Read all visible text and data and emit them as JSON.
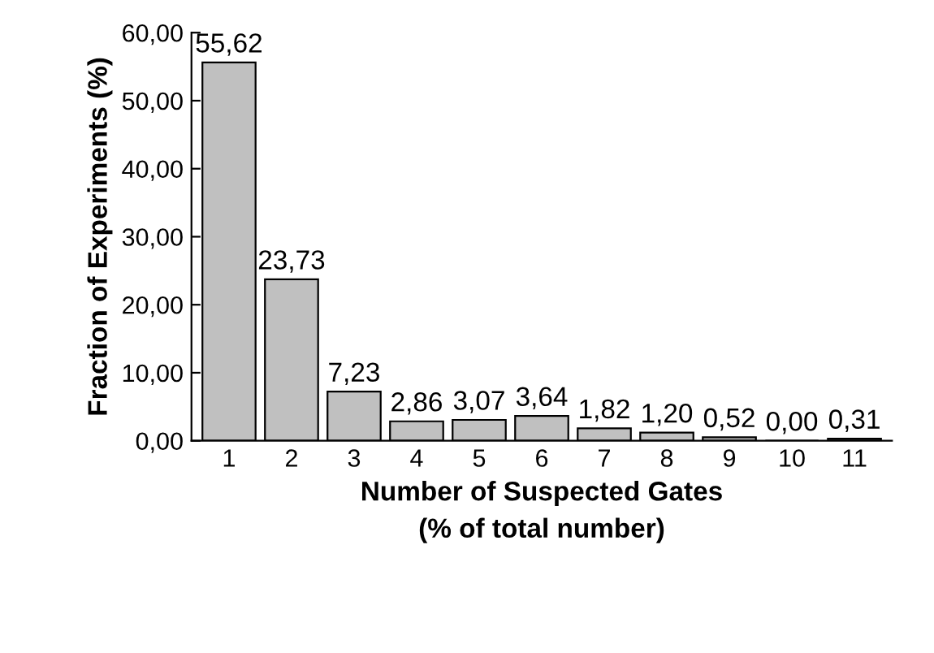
{
  "chart_data": {
    "type": "bar",
    "xlabel": "Number of Suspected Gates\n(% of total number)",
    "ylabel": "Fraction of Experiments (%)",
    "categories": [
      "1",
      "2",
      "3",
      "4",
      "5",
      "6",
      "7",
      "8",
      "9",
      "10",
      "11"
    ],
    "values": [
      55.62,
      23.73,
      7.23,
      2.86,
      3.07,
      3.64,
      1.82,
      1.2,
      0.52,
      0.0,
      0.31
    ],
    "value_labels": [
      "55,62",
      "23,73",
      "7,23",
      "2,86",
      "3,07",
      "3,64",
      "1,82",
      "1,20",
      "0,52",
      "0,00",
      "0,31"
    ],
    "color": "#c0c0c0",
    "ylim": [
      0,
      60
    ],
    "yticks": [
      {
        "value": 0,
        "label": "0,00"
      },
      {
        "value": 10,
        "label": "10,00"
      },
      {
        "value": 20,
        "label": "20,00"
      },
      {
        "value": 30,
        "label": "30,00"
      },
      {
        "value": 40,
        "label": "40,00"
      },
      {
        "value": 50,
        "label": "50,00"
      },
      {
        "value": 60,
        "label": "60,00"
      }
    ],
    "grid": false,
    "legend": false
  }
}
